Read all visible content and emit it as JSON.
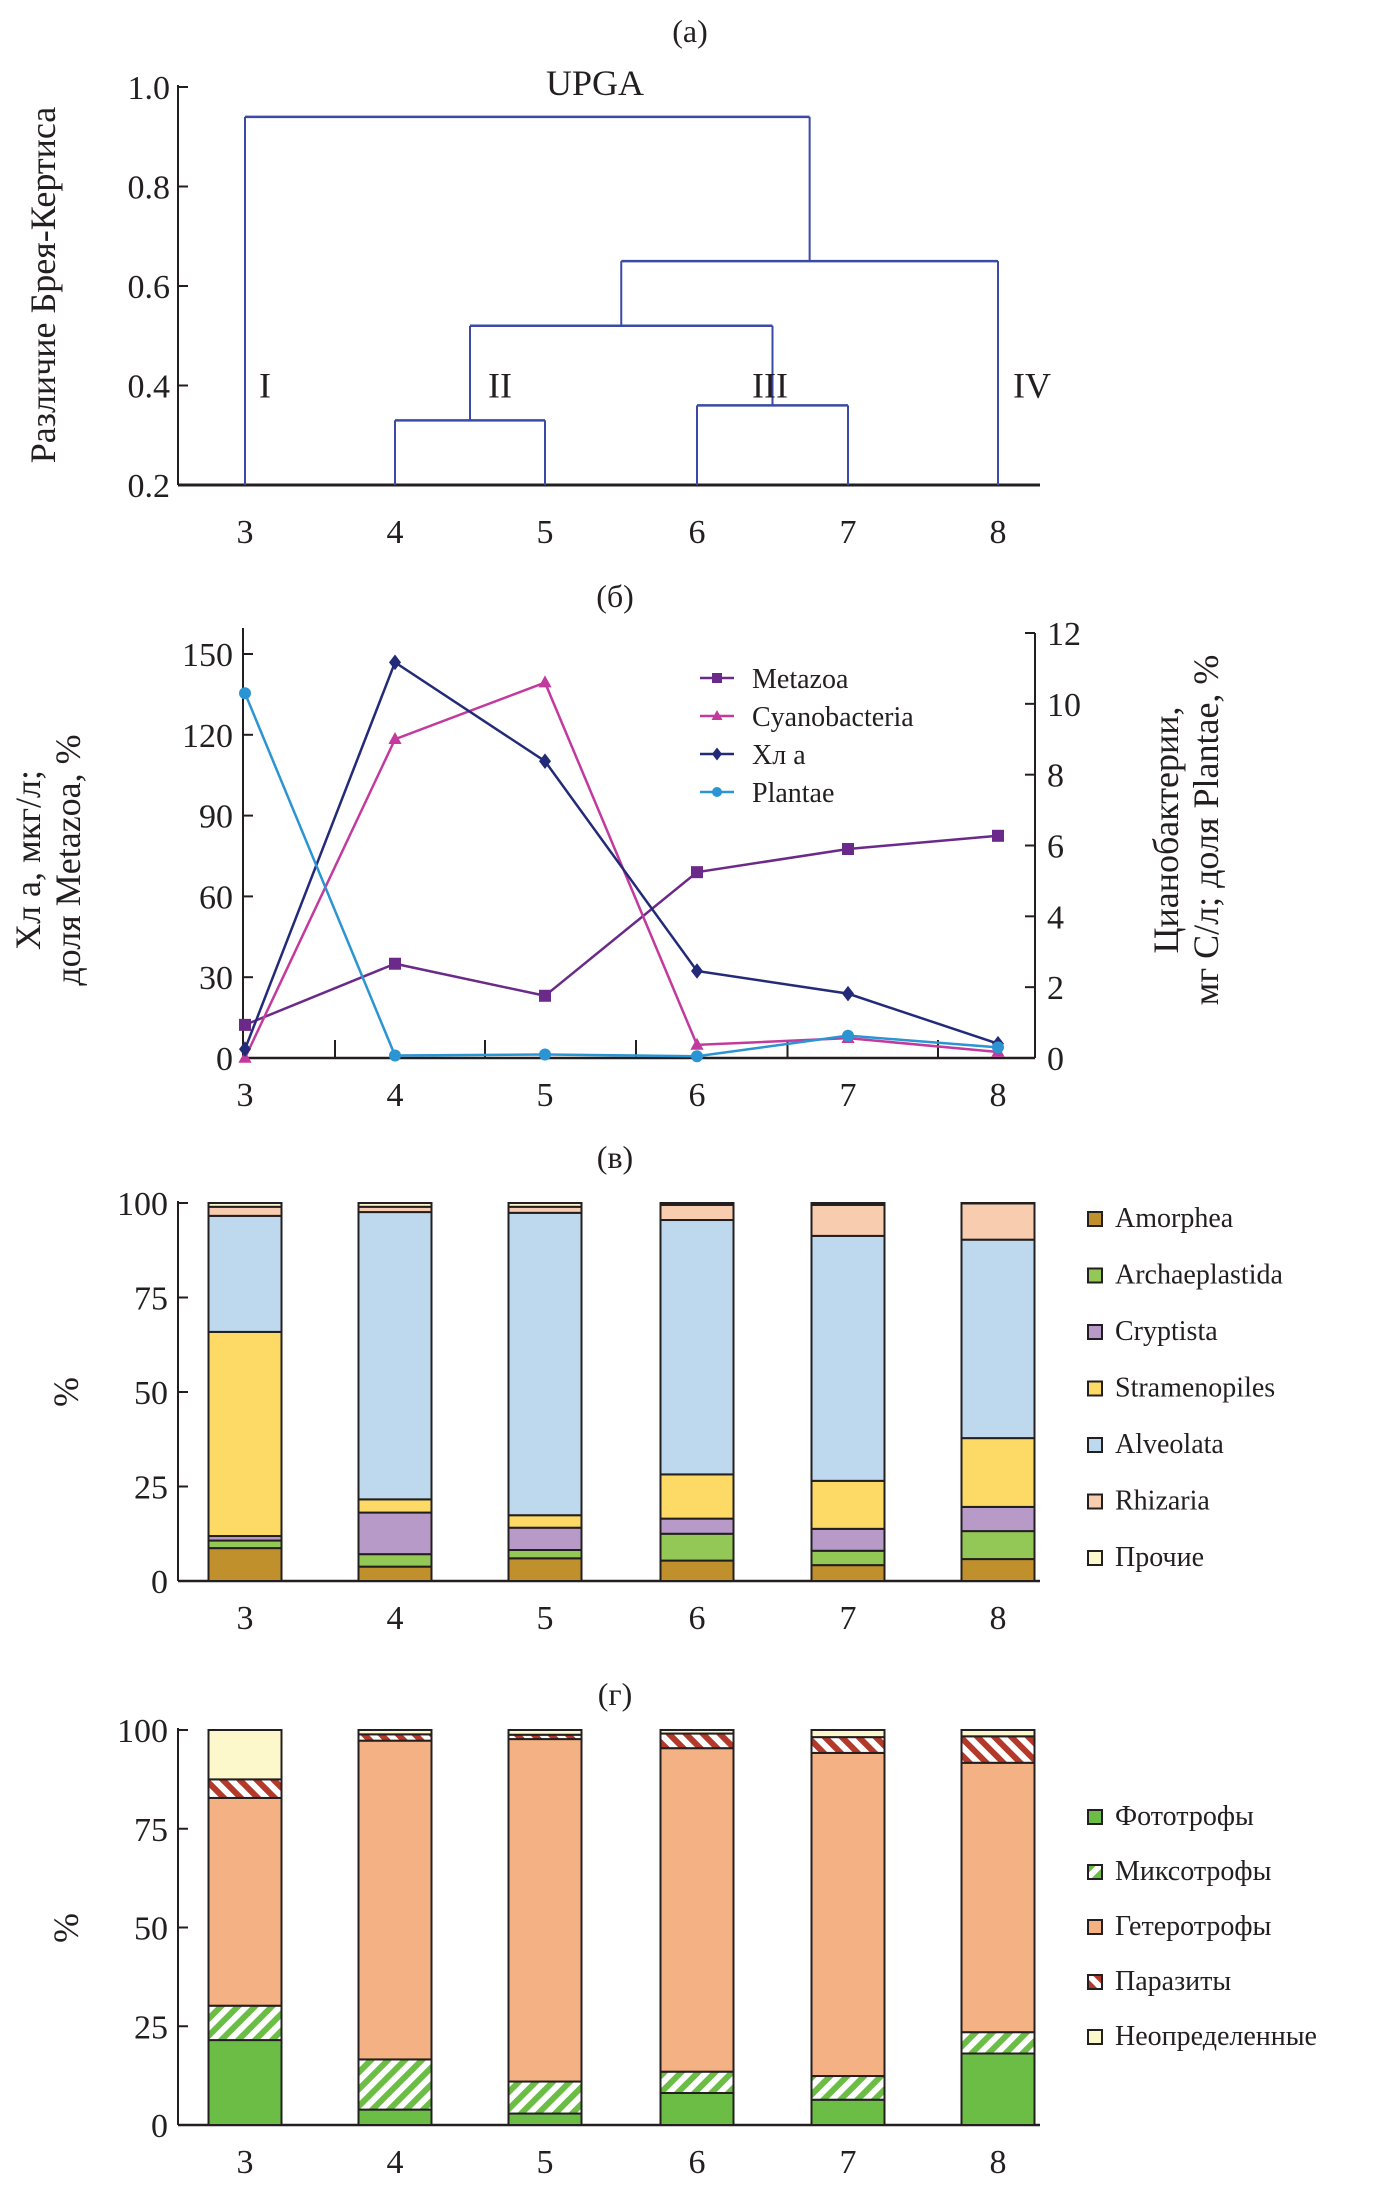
{
  "chart_data": [
    {
      "panel": "(а)",
      "type": "dendrogram",
      "title": "UPGA",
      "ylabel": "Различие Брея-Кертиса",
      "ylim": [
        0.2,
        1.0
      ],
      "yticks": [
        "0.2",
        "0.4",
        "0.6",
        "0.8",
        "1.0"
      ],
      "leaves": [
        "3",
        "4",
        "5",
        "6",
        "7",
        "8"
      ],
      "merges": [
        {
          "left": "4",
          "right": "5",
          "height": 0.33
        },
        {
          "left": "6",
          "right": "7",
          "height": 0.36
        },
        {
          "left": "4-5",
          "right": "6-7",
          "height": 0.52
        },
        {
          "left": "4-7",
          "right": "8",
          "height": 0.65
        },
        {
          "left": "3",
          "right": "4-8",
          "height": 0.94
        }
      ],
      "cluster_labels": [
        {
          "label": "I",
          "leaf": "3"
        },
        {
          "label": "II",
          "leaf": "4-5"
        },
        {
          "label": "III",
          "leaf": "6-7"
        },
        {
          "label": "IV",
          "leaf": "8"
        }
      ],
      "line_color": "#3b4aa5"
    },
    {
      "panel": "(б)",
      "type": "line",
      "x": [
        "3",
        "4",
        "5",
        "6",
        "7",
        "8"
      ],
      "ylabel_left_line1": "Хл a, мкг/л;",
      "ylabel_left_line2": "доля Metazoa, %",
      "ylabel_right_line1": "Цианобактерии,",
      "ylabel_right_line2": "мг С/л; доля Plantae, %",
      "ylim_left": [
        0,
        150
      ],
      "yticks_left": [
        "0",
        "30",
        "60",
        "90",
        "120",
        "150"
      ],
      "ylim_right": [
        0,
        12
      ],
      "yticks_right": [
        "0",
        "2",
        "4",
        "6",
        "8",
        "10",
        "12"
      ],
      "legend_position": "top-right",
      "series": [
        {
          "name": "Metazoa",
          "axis": "left",
          "marker": "square",
          "color": "#6b2a8a",
          "values": [
            12.3,
            35.0,
            23.1,
            69.0,
            77.6,
            82.5
          ]
        },
        {
          "name": "Cyanobacteria",
          "axis": "right",
          "marker": "triangle",
          "color": "#c23a9d",
          "values": [
            0.0,
            9.0,
            10.6,
            0.37,
            0.56,
            0.17
          ]
        },
        {
          "name": "Хл a",
          "axis": "left",
          "marker": "diamond",
          "color": "#232a78",
          "values": [
            3.3,
            146.9,
            110.2,
            32.3,
            23.9,
            5.3
          ]
        },
        {
          "name": "Plantae",
          "axis": "right",
          "marker": "circle",
          "color": "#2b95d3",
          "values": [
            10.3,
            0.07,
            0.1,
            0.05,
            0.63,
            0.3
          ]
        }
      ]
    },
    {
      "panel": "(в)",
      "type": "bar",
      "stacked": true,
      "categories": [
        "3",
        "4",
        "5",
        "6",
        "7",
        "8"
      ],
      "ylabel": "%",
      "ylim": [
        0,
        100
      ],
      "yticks": [
        "0",
        "25",
        "50",
        "75",
        "100"
      ],
      "legend_position": "right",
      "series": [
        {
          "name": "Amorphea",
          "color": "#c0902d",
          "values": [
            8.7,
            3.8,
            6.0,
            5.4,
            4.2,
            5.8
          ]
        },
        {
          "name": "Archaeplastida",
          "color": "#94c856",
          "values": [
            2.0,
            3.3,
            2.2,
            7.1,
            3.8,
            7.4
          ]
        },
        {
          "name": "Cryptista",
          "color": "#b89ac9",
          "values": [
            1.2,
            11.0,
            5.9,
            4.0,
            5.8,
            6.4
          ]
        },
        {
          "name": "Stramenopiles",
          "color": "#fdd966",
          "values": [
            54.0,
            3.5,
            3.3,
            11.7,
            12.7,
            18.2
          ]
        },
        {
          "name": "Alveolata",
          "color": "#bed8ee",
          "values": [
            30.7,
            76.0,
            80.0,
            67.3,
            64.8,
            52.5
          ]
        },
        {
          "name": "Rhizaria",
          "color": "#f8ccae",
          "values": [
            2.4,
            1.4,
            1.6,
            4.0,
            8.2,
            9.6
          ]
        },
        {
          "name": "Прочие",
          "color": "#fbf8ce",
          "values": [
            1.0,
            1.0,
            1.0,
            0.5,
            0.5,
            0.1
          ]
        }
      ]
    },
    {
      "panel": "(г)",
      "type": "bar",
      "stacked": true,
      "categories": [
        "3",
        "4",
        "5",
        "6",
        "7",
        "8"
      ],
      "ylabel": "%",
      "ylim": [
        0,
        100
      ],
      "yticks": [
        "0",
        "25",
        "50",
        "75",
        "100"
      ],
      "legend_position": "right",
      "series": [
        {
          "name": "Фототрофы",
          "color": "#6bbd45",
          "pattern": "solid",
          "values": [
            21.5,
            3.9,
            2.9,
            8.1,
            6.4,
            18.1
          ]
        },
        {
          "name": "Миксотрофы",
          "color": "#6bbd45",
          "pattern": "hatch-back",
          "values": [
            8.7,
            12.7,
            8.1,
            5.4,
            6.0,
            5.4
          ]
        },
        {
          "name": "Гетеротрофы",
          "color": "#f4b183",
          "pattern": "solid",
          "values": [
            52.6,
            80.7,
            86.7,
            81.9,
            81.8,
            68.2
          ]
        },
        {
          "name": "Паразиты",
          "color": "#b33a2a",
          "pattern": "hatch-forward",
          "values": [
            4.7,
            1.6,
            1.1,
            3.7,
            4.0,
            6.7
          ]
        },
        {
          "name": "Неопределенные",
          "color": "#fcf8cc",
          "pattern": "solid",
          "values": [
            12.5,
            1.1,
            1.2,
            0.9,
            1.8,
            1.6
          ]
        }
      ]
    }
  ]
}
